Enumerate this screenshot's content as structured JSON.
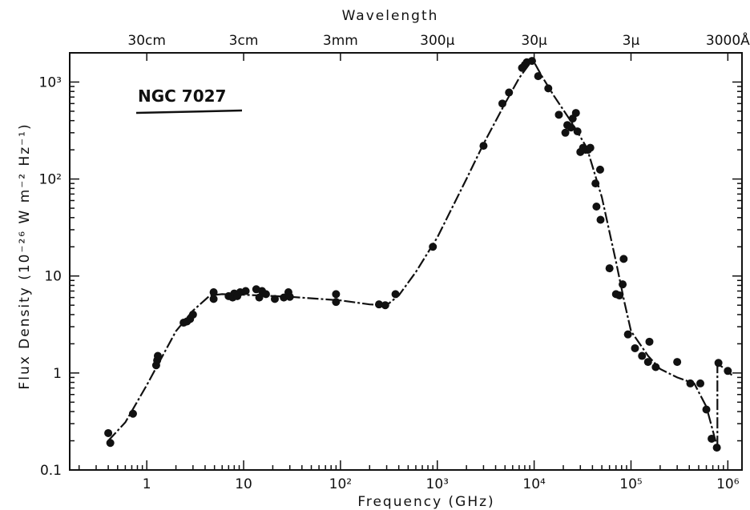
{
  "chart_data": {
    "type": "scatter",
    "title": "",
    "annotation": "NGC 7027",
    "xlabel": "Frequency (GHz)",
    "ylabel": "Flux Density (10⁻²⁶ W m⁻² Hz⁻¹)",
    "top_axis_label": "Wavelength",
    "x_scale": "log",
    "y_scale": "log",
    "xlim": [
      0.16,
      1400000.0
    ],
    "ylim": [
      0.1,
      2000
    ],
    "x_ticks": [
      {
        "value": 1,
        "label": "1"
      },
      {
        "value": 10,
        "label": "10"
      },
      {
        "value": 100,
        "label": "10²"
      },
      {
        "value": 1000,
        "label": "10³"
      },
      {
        "value": 10000,
        "label": "10⁴"
      },
      {
        "value": 100000,
        "label": "10⁵"
      },
      {
        "value": 1000000,
        "label": "10⁶"
      }
    ],
    "y_ticks": [
      {
        "value": 0.1,
        "label": "0.1"
      },
      {
        "value": 1,
        "label": "1"
      },
      {
        "value": 10,
        "label": "10"
      },
      {
        "value": 100,
        "label": "10²"
      },
      {
        "value": 1000,
        "label": "10³"
      }
    ],
    "top_ticks": [
      {
        "freq": 1,
        "label": "30cm"
      },
      {
        "freq": 10,
        "label": "3cm"
      },
      {
        "freq": 100,
        "label": "3mm"
      },
      {
        "freq": 1000,
        "label": "300μ"
      },
      {
        "freq": 10000,
        "label": "30μ"
      },
      {
        "freq": 100000,
        "label": "3μ"
      },
      {
        "freq": 1000000,
        "label": "3000Å"
      }
    ],
    "points": [
      [
        0.4,
        0.24
      ],
      [
        0.42,
        0.19
      ],
      [
        0.72,
        0.38
      ],
      [
        1.25,
        1.2
      ],
      [
        1.28,
        1.35
      ],
      [
        1.3,
        1.5
      ],
      [
        2.4,
        3.3
      ],
      [
        2.6,
        3.4
      ],
      [
        2.8,
        3.6
      ],
      [
        3.0,
        4.0
      ],
      [
        4.9,
        6.8
      ],
      [
        4.9,
        5.8
      ],
      [
        7.0,
        6.2
      ],
      [
        7.7,
        6.0
      ],
      [
        8.0,
        6.6
      ],
      [
        8.6,
        6.2
      ],
      [
        9.2,
        6.8
      ],
      [
        10.5,
        7.0
      ],
      [
        13.5,
        7.3
      ],
      [
        14.5,
        6.0
      ],
      [
        15.5,
        7.0
      ],
      [
        17.0,
        6.5
      ],
      [
        21,
        5.8
      ],
      [
        26,
        6.0
      ],
      [
        29,
        6.8
      ],
      [
        30,
        6.1
      ],
      [
        90,
        6.5
      ],
      [
        90,
        5.4
      ],
      [
        250,
        5.1
      ],
      [
        290,
        5.0
      ],
      [
        370,
        6.5
      ],
      [
        900,
        20
      ],
      [
        3000,
        220
      ],
      [
        4700,
        600
      ],
      [
        5500,
        780
      ],
      [
        7500,
        1400
      ],
      [
        8000,
        1500
      ],
      [
        8400,
        1600
      ],
      [
        9500,
        1650
      ],
      [
        11000,
        1150
      ],
      [
        14000,
        860
      ],
      [
        18000,
        460
      ],
      [
        21000,
        300
      ],
      [
        22000,
        360
      ],
      [
        24000,
        340
      ],
      [
        25000,
        420
      ],
      [
        27000,
        480
      ],
      [
        28000,
        310
      ],
      [
        30000,
        190
      ],
      [
        32000,
        210
      ],
      [
        34000,
        200
      ],
      [
        36000,
        200
      ],
      [
        38000,
        210
      ],
      [
        43000,
        90
      ],
      [
        48000,
        125
      ],
      [
        44000,
        52
      ],
      [
        48500,
        38
      ],
      [
        60000,
        12
      ],
      [
        70000,
        6.5
      ],
      [
        76000,
        6.3
      ],
      [
        82000,
        8.2
      ],
      [
        84000,
        15
      ],
      [
        93000,
        2.5
      ],
      [
        110000,
        1.8
      ],
      [
        130000,
        1.5
      ],
      [
        150000,
        1.3
      ],
      [
        155000,
        2.1
      ],
      [
        180000,
        1.15
      ],
      [
        300000,
        1.3
      ],
      [
        410000,
        0.78
      ],
      [
        520000,
        0.78
      ],
      [
        600000,
        0.42
      ],
      [
        680000,
        0.21
      ],
      [
        770000,
        0.17
      ],
      [
        800000,
        1.27
      ],
      [
        1000000,
        1.05
      ]
    ],
    "curve": [
      [
        0.4,
        0.2
      ],
      [
        0.6,
        0.31
      ],
      [
        1.0,
        0.75
      ],
      [
        2.0,
        2.7
      ],
      [
        3.0,
        4.4
      ],
      [
        4.5,
        6.3
      ],
      [
        6.0,
        6.5
      ],
      [
        10,
        6.4
      ],
      [
        30,
        6.1
      ],
      [
        100,
        5.6
      ],
      [
        200,
        5.1
      ],
      [
        300,
        5.0
      ],
      [
        400,
        6.3
      ],
      [
        600,
        11
      ],
      [
        1000,
        25
      ],
      [
        2000,
        100
      ],
      [
        3000,
        230
      ],
      [
        5000,
        600
      ],
      [
        7000,
        1100
      ],
      [
        9000,
        1550
      ],
      [
        10000,
        1600
      ],
      [
        12000,
        1150
      ],
      [
        16000,
        720
      ],
      [
        25000,
        370
      ],
      [
        35000,
        210
      ],
      [
        50000,
        65
      ],
      [
        70000,
        14
      ],
      [
        85000,
        5.5
      ],
      [
        100000,
        2.7
      ],
      [
        150000,
        1.5
      ],
      [
        200000,
        1.1
      ],
      [
        300000,
        0.9
      ],
      [
        450000,
        0.78
      ],
      [
        600000,
        0.45
      ],
      [
        780000,
        0.17
      ],
      [
        780000,
        1.25
      ],
      [
        1000000,
        1.05
      ],
      [
        1100000,
        0.95
      ]
    ],
    "grid": false,
    "legend": "none"
  }
}
